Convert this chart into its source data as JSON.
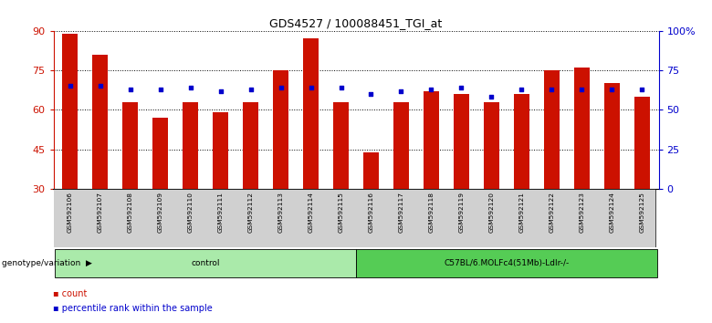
{
  "title": "GDS4527 / 100088451_TGI_at",
  "samples": [
    "GSM592106",
    "GSM592107",
    "GSM592108",
    "GSM592109",
    "GSM592110",
    "GSM592111",
    "GSM592112",
    "GSM592113",
    "GSM592114",
    "GSM592115",
    "GSM592116",
    "GSM592117",
    "GSM592118",
    "GSM592119",
    "GSM592120",
    "GSM592121",
    "GSM592122",
    "GSM592123",
    "GSM592124",
    "GSM592125"
  ],
  "count_values": [
    89,
    81,
    63,
    57,
    63,
    59,
    63,
    75,
    87,
    63,
    44,
    63,
    67,
    66,
    63,
    66,
    75,
    76,
    70,
    65
  ],
  "percentile_values": [
    65,
    65,
    63,
    63,
    64,
    62,
    63,
    64,
    64,
    64,
    60,
    62,
    63,
    64,
    58,
    63,
    63,
    63,
    63,
    63
  ],
  "groups": [
    {
      "label": "control",
      "start": 0,
      "end": 9,
      "color": "#aaeaaa"
    },
    {
      "label": "C57BL/6.MOLFc4(51Mb)-Ldlr-/-",
      "start": 10,
      "end": 19,
      "color": "#55cc55"
    }
  ],
  "ylim_left": [
    30,
    90
  ],
  "ylim_right": [
    0,
    100
  ],
  "yticks_left": [
    30,
    45,
    60,
    75,
    90
  ],
  "yticks_right": [
    0,
    25,
    50,
    75,
    100
  ],
  "ytick_labels_right": [
    "0",
    "25",
    "50",
    "75",
    "100%"
  ],
  "bar_color": "#cc1100",
  "dot_color": "#0000cc",
  "bar_width": 0.5,
  "background_color": "#ffffff",
  "tick_area_bg": "#d0d0d0",
  "legend_items": [
    {
      "label": "count",
      "color": "#cc1100"
    },
    {
      "label": "percentile rank within the sample",
      "color": "#0000cc"
    }
  ],
  "genotype_label": "genotype/variation"
}
